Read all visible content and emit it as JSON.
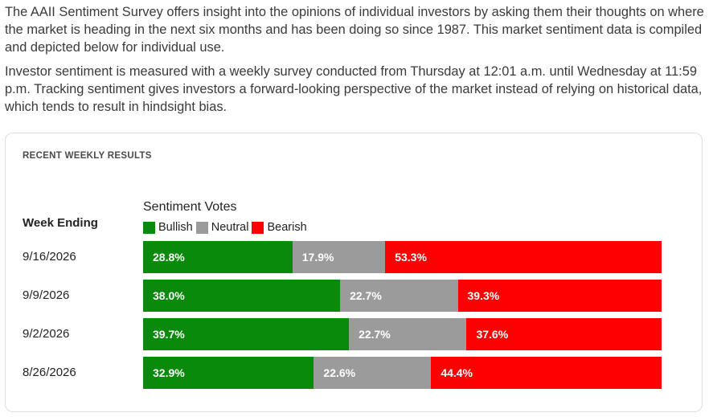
{
  "intro": {
    "paragraph_1": "The AAII Sentiment Survey offers insight into the opinions of individual investors by asking them their thoughts on where the market is heading in the next six months and has been doing so since 1987. This market sentiment data is compiled and depicted below for individual use.",
    "paragraph_2": "Investor sentiment is measured with a weekly survey conducted from Thursday at 12:01 a.m. until Wednesday at 11:59 p.m. Tracking sentiment gives investors a forward-looking perspective of the market instead of relying on historical data, which tends to result in hindsight bias."
  },
  "card": {
    "title": "RECENT WEEKLY RESULTS",
    "week_header": "Week Ending"
  },
  "colors": {
    "bullish": "#0a8a0a",
    "neutral": "#9b9b9b",
    "bearish": "#ff0000"
  },
  "chart_data": {
    "type": "bar",
    "orientation": "horizontal-stacked-100",
    "title": "Sentiment Votes",
    "legend": [
      "Bullish",
      "Neutral",
      "Bearish"
    ],
    "categories": [
      "9/16/2026",
      "9/9/2026",
      "9/2/2026",
      "8/26/2026"
    ],
    "series": [
      {
        "name": "Bullish",
        "values": [
          28.8,
          38.0,
          39.7,
          32.9
        ],
        "labels": [
          "28.8%",
          "38.0%",
          "39.7%",
          "32.9%"
        ]
      },
      {
        "name": "Neutral",
        "values": [
          17.9,
          22.7,
          22.7,
          22.6
        ],
        "labels": [
          "17.9%",
          "22.7%",
          "22.7%",
          "22.6%"
        ]
      },
      {
        "name": "Bearish",
        "values": [
          53.3,
          39.3,
          37.6,
          44.4
        ],
        "labels": [
          "53.3%",
          "39.3%",
          "37.6%",
          "44.4%"
        ]
      }
    ]
  }
}
